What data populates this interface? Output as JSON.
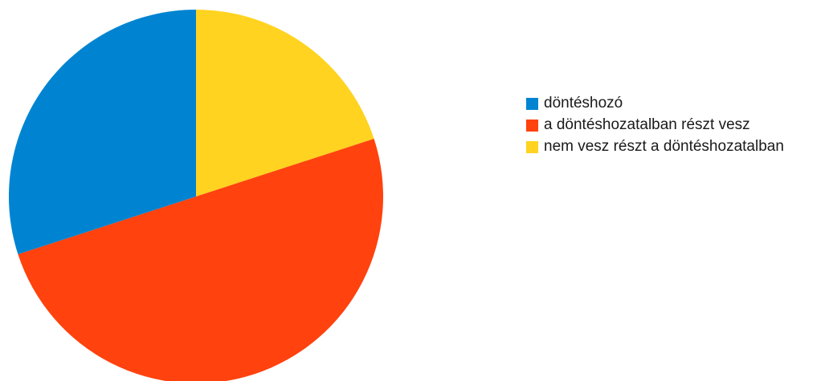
{
  "chart_data": {
    "type": "pie",
    "title": "",
    "legend_placement": "right",
    "slices": [
      {
        "label": "nem vesz részt a döntéshozatalban",
        "value": 20,
        "color": "#ffd320"
      },
      {
        "label": "a döntéshozatalban részt vesz",
        "value": 50,
        "color": "#ff420e"
      },
      {
        "label": "döntéshozó",
        "value": 30,
        "color": "#0084d1"
      }
    ],
    "legend_order": [
      2,
      1,
      0
    ]
  }
}
